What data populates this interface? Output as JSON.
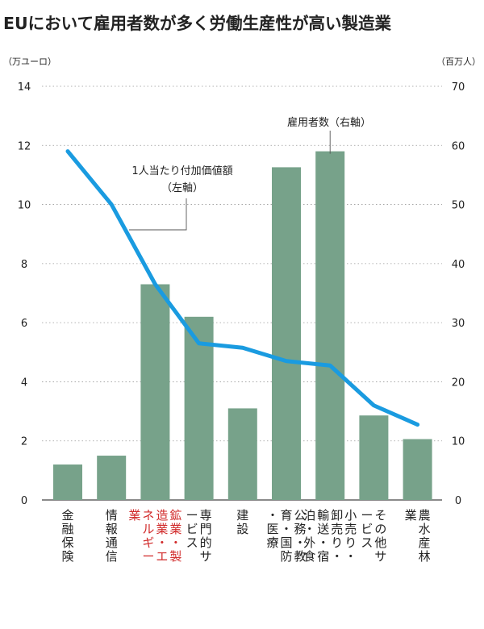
{
  "chart_data": {
    "type": "bar",
    "title": "EUにおいて雇用者数が多く労働生産性が高い製造業",
    "left_unit": "（万ユーロ）",
    "right_unit": "（百万人）",
    "left_ticks": [
      "0",
      "2",
      "4",
      "6",
      "8",
      "10",
      "12",
      "14"
    ],
    "right_ticks": [
      "0",
      "10",
      "20",
      "30",
      "40",
      "50",
      "60",
      "70"
    ],
    "left_ylim": [
      0,
      14
    ],
    "right_ylim": [
      0,
      70
    ],
    "grid": true,
    "categories": [
      {
        "label": "金融保険",
        "highlight": false
      },
      {
        "label": "情報通信",
        "highlight": false
      },
      {
        "label": "鉱業・製造業・エネルギー業",
        "highlight": true
      },
      {
        "label": "専門的サービス",
        "highlight": false
      },
      {
        "label": "建設",
        "highlight": false
      },
      {
        "label": "公務・教育・国防・医療",
        "highlight": false
      },
      {
        "label": "小売り・卸売り・輸送・宿泊・外食",
        "highlight": false
      },
      {
        "label": "その他サービス",
        "highlight": false
      },
      {
        "label": "農水産林業",
        "highlight": false
      }
    ],
    "series": [
      {
        "name": "雇用者数（右軸）",
        "kind": "bar",
        "axis": "right",
        "values": [
          6,
          7.5,
          36.5,
          31,
          15.5,
          56.3,
          59,
          14.3,
          10.3
        ]
      },
      {
        "name": "1人当たり付加価値額（左軸）",
        "kind": "line",
        "axis": "left",
        "values": [
          11.8,
          10.0,
          7.3,
          5.3,
          5.15,
          4.7,
          4.55,
          3.2,
          2.55
        ]
      }
    ],
    "annotations": {
      "bar_label": "雇用者数（右軸）",
      "line_label_1": "1人当たり付加価値額",
      "line_label_2": "（左軸）"
    },
    "colors": {
      "bar": "#77a28a",
      "line": "#1a9be0",
      "highlight_text": "#d12a2a",
      "text": "#222222",
      "grid": "#999999"
    }
  }
}
